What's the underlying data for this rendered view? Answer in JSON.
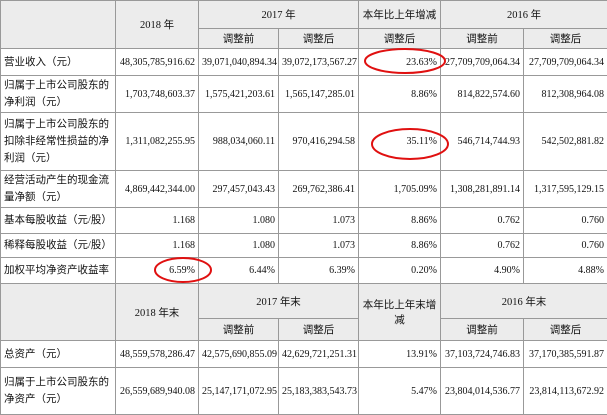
{
  "header1": {
    "col_2018": "2018 年",
    "col_2017": "2017 年",
    "col_change": "本年比上年增减",
    "col_2016": "2016 年",
    "sub": [
      "调整前",
      "调整后",
      "调整后",
      "调整前",
      "调整后"
    ]
  },
  "rows": [
    [
      "营业收入（元）",
      "48,305,785,916.62",
      "39,071,040,894.34",
      "39,072,173,567.27",
      "23.63%",
      "27,709,709,064.34",
      "27,709,709,064.34"
    ],
    [
      "归属于上市公司股东的净利润（元）",
      "1,703,748,603.37",
      "1,575,421,203.61",
      "1,565,147,285.01",
      "8.86%",
      "814,822,574.60",
      "812,308,964.08"
    ],
    [
      "归属于上市公司股东的扣除非经常性损益的净利润（元）",
      "1,311,082,255.95",
      "988,034,060.11",
      "970,416,294.58",
      "35.11%",
      "546,714,744.93",
      "542,502,881.82"
    ],
    [
      "经营活动产生的现金流量净额（元）",
      "4,869,442,344.00",
      "297,457,043.43",
      "269,762,386.41",
      "1,705.09%",
      "1,308,281,891.14",
      "1,317,595,129.15"
    ],
    [
      "基本每股收益（元/股）",
      "1.168",
      "1.080",
      "1.073",
      "8.86%",
      "0.762",
      "0.760"
    ],
    [
      "稀释每股收益（元/股）",
      "1.168",
      "1.080",
      "1.073",
      "8.86%",
      "0.762",
      "0.760"
    ],
    [
      "加权平均净资产收益率",
      "6.59%",
      "6.44%",
      "6.39%",
      "0.20%",
      "4.90%",
      "4.88%"
    ]
  ],
  "header2": {
    "col_2018": "2018 年末",
    "col_2017": "2017 年末",
    "col_change": "本年比上年末增减",
    "col_2016": "2016 年末",
    "sub": [
      "调整前",
      "调整后",
      "调整前",
      "调整后"
    ]
  },
  "rows2": [
    [
      "总资产（元）",
      "48,559,578,286.47",
      "42,575,690,855.09",
      "42,629,721,251.31",
      "13.91%",
      "37,103,724,746.83",
      "37,170,385,591.87"
    ],
    [
      "归属于上市公司股东的净资产（元）",
      "26,559,689,940.08",
      "25,147,171,072.95",
      "25,183,383,543.73",
      "5.47%",
      "23,804,014,536.77",
      "23,814,113,672.92"
    ]
  ]
}
